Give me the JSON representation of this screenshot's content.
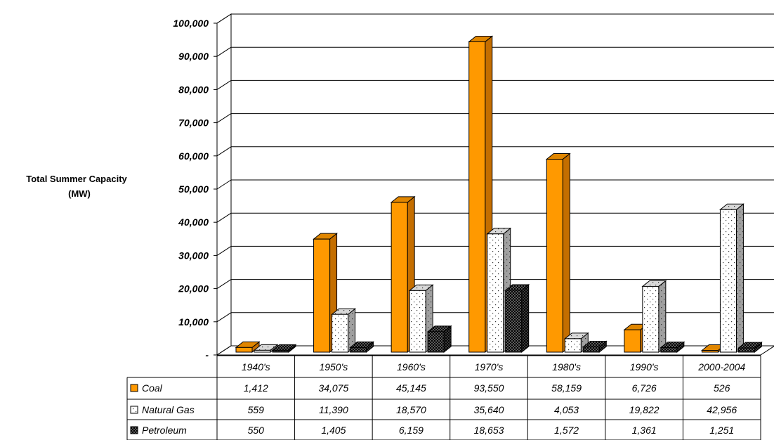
{
  "chart_data": {
    "type": "bar",
    "ylabel_lines": [
      "Total Summer Capacity",
      "(MW)"
    ],
    "categories": [
      "1940's",
      "1950's",
      "1960's",
      "1970's",
      "1980's",
      "1990's",
      "2000-2004"
    ],
    "series": [
      {
        "name": "Coal",
        "values": [
          1412,
          34075,
          45145,
          93550,
          58159,
          6726,
          526
        ],
        "display": [
          "1,412",
          "34,075",
          "45,145",
          "93,550",
          "58,159",
          "6,726",
          "526"
        ],
        "color": "#FF9900",
        "pattern": "solid"
      },
      {
        "name": "Natural Gas",
        "values": [
          559,
          11390,
          18570,
          35640,
          4053,
          19822,
          42956
        ],
        "display": [
          "559",
          "11,390",
          "18,570",
          "35,640",
          "4,053",
          "19,822",
          "42,956"
        ],
        "color": "#FFFFFF",
        "pattern": "dots"
      },
      {
        "name": "Petroleum",
        "values": [
          550,
          1405,
          6159,
          18653,
          1572,
          1361,
          1251
        ],
        "display": [
          "550",
          "1,405",
          "6,159",
          "18,653",
          "1,572",
          "1,361",
          "1,251"
        ],
        "color": "#000000",
        "pattern": "checker"
      }
    ],
    "yticks": [
      0,
      10000,
      20000,
      30000,
      40000,
      50000,
      60000,
      70000,
      80000,
      90000,
      100000
    ],
    "ytick_labels": [
      "-",
      "10,000",
      "20,000",
      "30,000",
      "40,000",
      "50,000",
      "60,000",
      "70,000",
      "80,000",
      "90,000",
      "100,000"
    ],
    "ylim": [
      0,
      100000
    ],
    "grid": true,
    "legend": "data table below chart",
    "bar_style": "3d"
  }
}
